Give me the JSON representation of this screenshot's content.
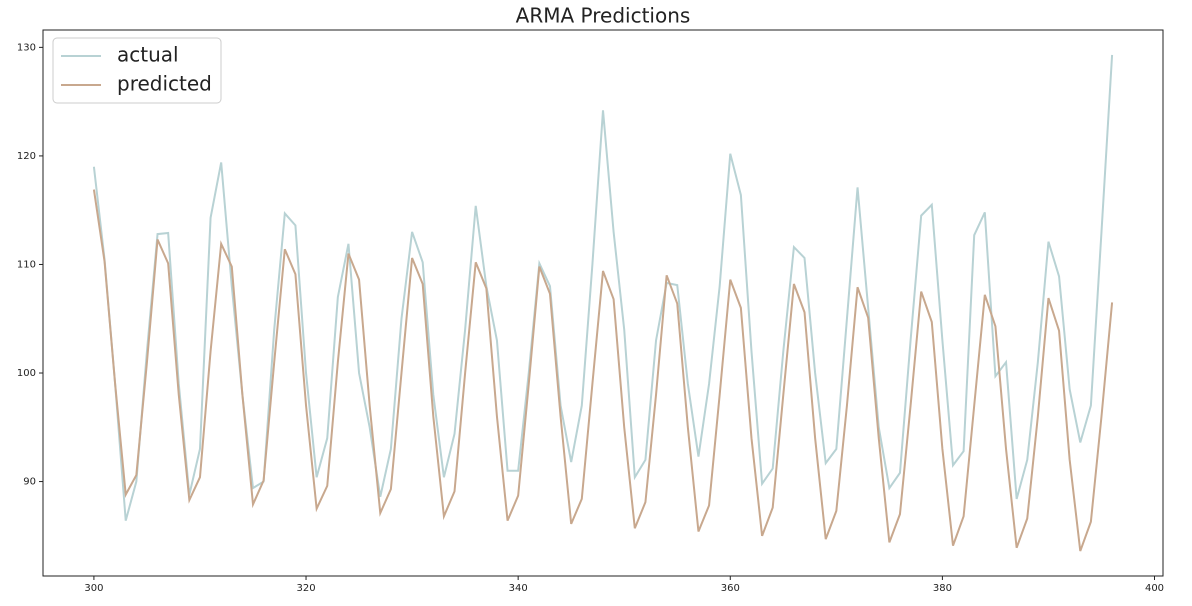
{
  "chart_data": {
    "type": "line",
    "title": "ARMA Predictions",
    "x": [
      300,
      301,
      302,
      303,
      304,
      305,
      306,
      307,
      308,
      309,
      310,
      311,
      312,
      313,
      314,
      315,
      316,
      317,
      318,
      319,
      320,
      321,
      322,
      323,
      324,
      325,
      326,
      327,
      328,
      329,
      330,
      331,
      332,
      333,
      334,
      335,
      336,
      337,
      338,
      339,
      340,
      341,
      342,
      343,
      344,
      345,
      346,
      347,
      348,
      349,
      350,
      351,
      352,
      353,
      354,
      355,
      356,
      357,
      358,
      359,
      360,
      361,
      362,
      363,
      364,
      365,
      366,
      367,
      368,
      369,
      370,
      371,
      372,
      373,
      374,
      375,
      376,
      377,
      378,
      379,
      380,
      381,
      382,
      383,
      384,
      385,
      386,
      387,
      388,
      389,
      390,
      391,
      392,
      393,
      394,
      395,
      396
    ],
    "series": [
      {
        "name": "actual",
        "color": "#b8d2d4",
        "values": [
          119.0,
          110.5,
          99,
          86.4,
          90,
          102,
          112.8,
          112.9,
          99,
          88.8,
          93,
          114.3,
          119.4,
          108,
          98,
          89.4,
          90,
          104,
          114.7,
          113.6,
          100,
          90.4,
          94,
          107,
          111.9,
          100,
          95,
          88.6,
          93,
          105,
          113,
          110.2,
          98,
          90.4,
          94.4,
          104,
          115.4,
          108,
          103,
          91,
          91,
          100,
          110.1,
          108,
          97,
          91.8,
          97,
          110,
          124.2,
          113,
          104,
          90.4,
          92,
          103,
          108.3,
          108.1,
          99,
          92.3,
          99,
          108,
          120.2,
          116.4,
          102,
          89.8,
          91.2,
          102,
          111.6,
          110.6,
          100,
          91.7,
          93,
          105,
          117.1,
          106,
          95,
          89.4,
          90.8,
          103,
          114.5,
          115.5,
          103,
          91.5,
          92.8,
          112.7,
          114.8,
          99.7,
          101,
          88.4,
          92,
          101,
          112.1,
          108.9,
          98.5,
          93.6,
          97,
          113,
          129.3
        ]
      },
      {
        "name": "predicted",
        "color": "#c8a88e",
        "values": [
          116.9,
          110.3,
          99,
          88.8,
          90.6,
          101,
          112.3,
          110.1,
          98,
          88.3,
          90.4,
          102,
          111.9,
          109.8,
          98,
          87.9,
          90.1,
          101,
          111.4,
          109.1,
          97,
          87.5,
          89.6,
          101,
          111,
          108.6,
          97,
          87.1,
          89.3,
          100,
          110.6,
          108.2,
          96,
          86.8,
          89.1,
          100,
          110.2,
          107.8,
          96,
          86.4,
          88.7,
          99,
          109.8,
          107.3,
          96,
          86.1,
          88.4,
          99,
          109.4,
          106.8,
          95,
          85.7,
          88.1,
          98,
          109,
          106.4,
          95,
          85.4,
          87.8,
          98,
          108.6,
          106,
          94,
          85,
          87.6,
          98,
          108.2,
          105.6,
          94,
          84.7,
          87.3,
          97,
          107.9,
          105.1,
          94,
          84.4,
          87,
          97,
          107.5,
          104.7,
          93,
          84.1,
          86.8,
          97,
          107.2,
          104.3,
          93,
          83.9,
          86.6,
          96,
          106.9,
          103.9,
          92,
          83.6,
          86.3,
          96,
          106.5
        ]
      }
    ],
    "xlim": [
      295.2,
      400.8
    ],
    "ylim": [
      81.3,
      131.6
    ],
    "xticks": [
      300,
      320,
      340,
      360,
      380,
      400
    ],
    "yticks": [
      90,
      100,
      110,
      120,
      130
    ],
    "legend": "upper left"
  }
}
